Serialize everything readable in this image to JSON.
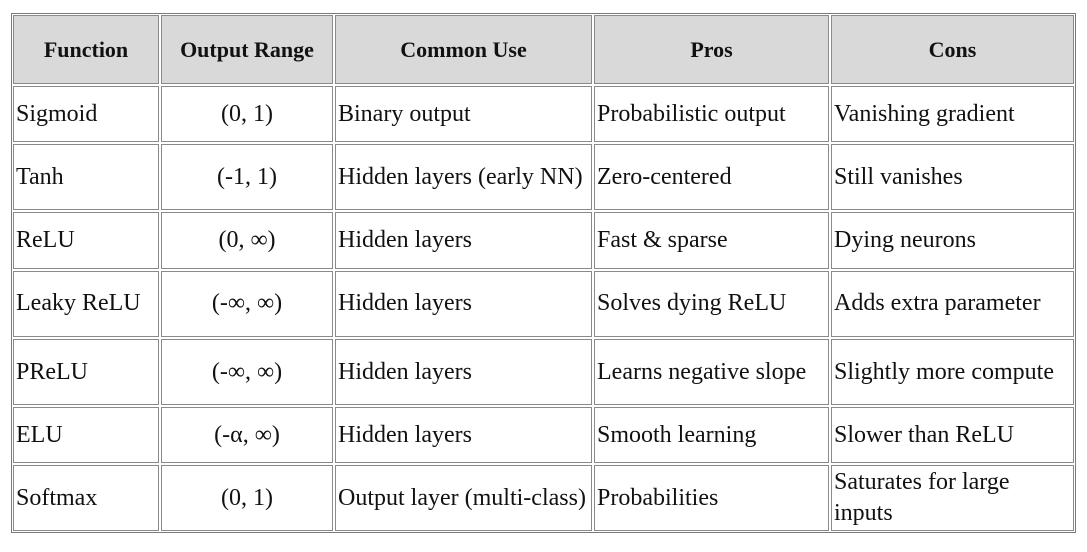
{
  "table": {
    "headers": [
      "Function",
      "Output Range",
      "Common Use",
      "Pros",
      "Cons"
    ],
    "rows": [
      [
        "Sigmoid",
        "(0, 1)",
        "Binary output",
        "Probabilistic output",
        "Vanishing gradient"
      ],
      [
        "Tanh",
        "(-1, 1)",
        "Hidden layers (early NN)",
        "Zero-centered",
        "Still vanishes"
      ],
      [
        "ReLU",
        "(0, ∞)",
        "Hidden layers",
        "Fast & sparse",
        "Dying neurons"
      ],
      [
        "Leaky ReLU",
        "(-∞, ∞)",
        "Hidden layers",
        "Solves dying ReLU",
        "Adds extra parameter"
      ],
      [
        "PReLU",
        "(-∞, ∞)",
        "Hidden layers",
        "Learns negative slope",
        "Slightly more compute"
      ],
      [
        "ELU",
        "(-α, ∞)",
        "Hidden layers",
        "Smooth learning",
        "Slower than ReLU"
      ],
      [
        "Softmax",
        "(0, 1)",
        "Output layer (multi-class)",
        "Probabilities",
        "Saturates for large inputs"
      ]
    ]
  }
}
